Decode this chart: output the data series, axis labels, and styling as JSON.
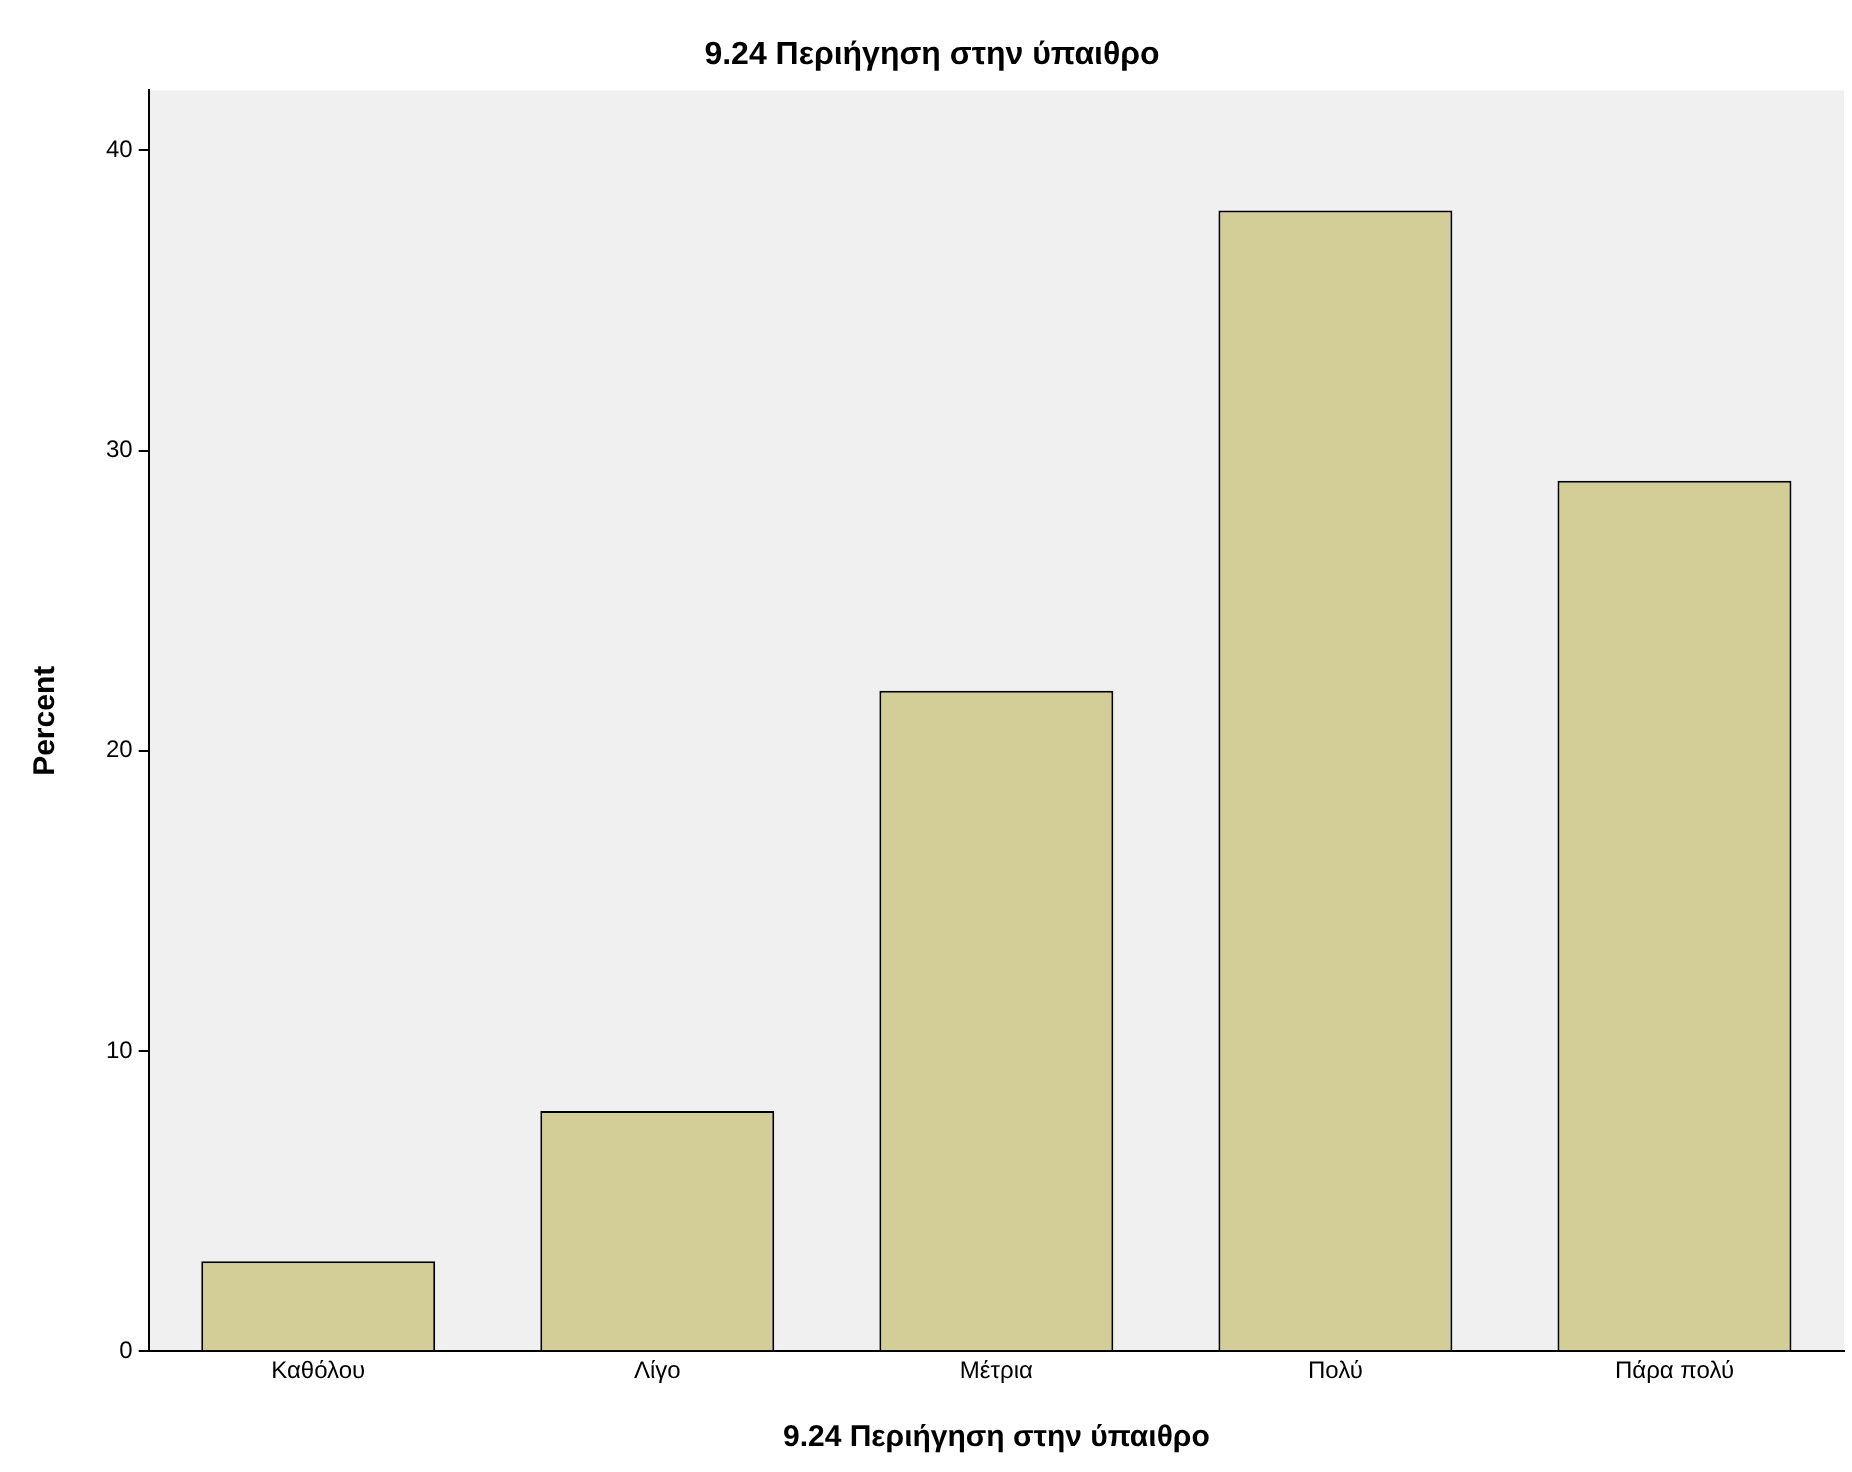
{
  "chart_data": {
    "type": "bar",
    "title": "9.24 Περιήγηση στην ύπαιθρο",
    "xlabel": "9.24 Περιήγηση στην ύπαιθρο",
    "ylabel": "Percent",
    "categories": [
      "Καθόλου",
      "Λίγο",
      "Μέτρια",
      "Πολύ",
      "Πάρα πολύ"
    ],
    "values": [
      3,
      8,
      22,
      38,
      29
    ],
    "color": "#d3ce97",
    "ylim": [
      0,
      42
    ],
    "yticks": [
      0,
      10,
      20,
      30,
      40
    ]
  }
}
